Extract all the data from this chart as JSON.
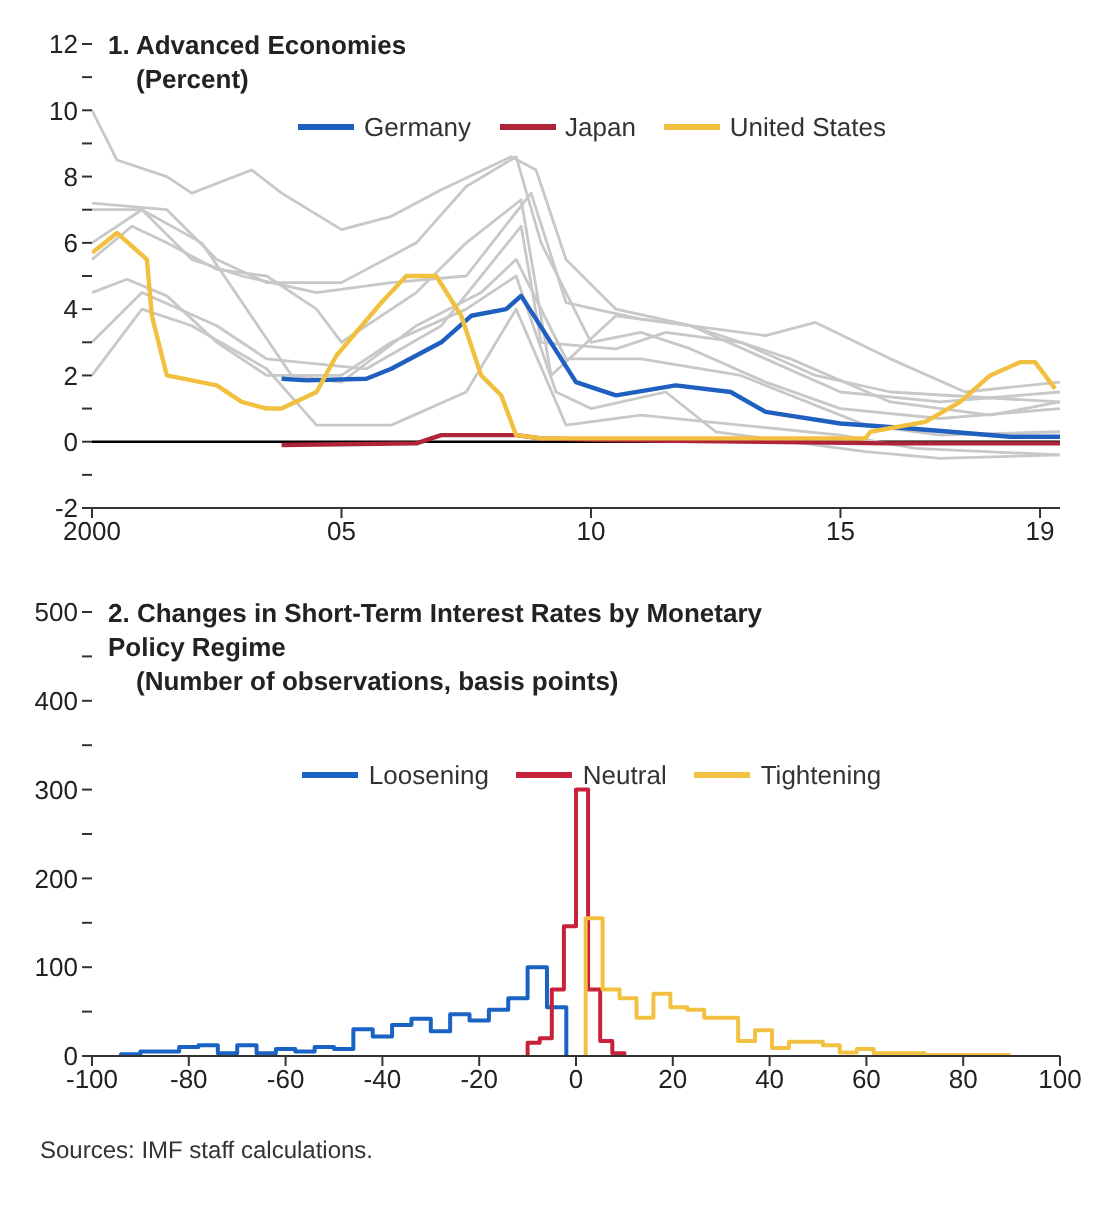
{
  "chart_data": [
    {
      "type": "line",
      "title": "1. Advanced Economies",
      "subtitle": "(Percent)",
      "legend": "top",
      "xlim": [
        2000,
        2019.4
      ],
      "xticks": [
        2000,
        {
          "value": 2005,
          "label": "05"
        },
        {
          "value": 2010,
          "label": "10"
        },
        {
          "value": 2015,
          "label": "15"
        },
        {
          "value": 2019,
          "label": "19"
        }
      ],
      "ylim": [
        -2,
        12
      ],
      "yticks": [
        -2,
        {
          "value": -1,
          "label": null
        },
        0,
        {
          "value": 1,
          "label": null
        },
        2,
        {
          "value": 3,
          "label": null
        },
        4,
        {
          "value": 5,
          "label": null
        },
        6,
        {
          "value": 7,
          "label": null
        },
        8,
        {
          "value": 9,
          "label": null
        },
        10,
        {
          "value": 11,
          "label": null
        },
        12
      ],
      "ref_lines": [
        {
          "axis": "y",
          "value": 0,
          "color": "#000000"
        }
      ],
      "series": [
        {
          "color": "#c8c8c8",
          "x": [
            2000,
            2000.5,
            2001.5,
            2002,
            2003.2,
            2003.8,
            2005,
            2006,
            2007,
            2008.4,
            2008.9,
            2009.5,
            2010.5,
            2012,
            2013.5,
            2015,
            2017,
            2019.4
          ],
          "values": [
            10,
            8.5,
            8,
            7.5,
            8.2,
            7.5,
            6.4,
            6.8,
            7.6,
            8.6,
            8.2,
            5.5,
            4,
            3.5,
            2.5,
            1.5,
            1.2,
            1.5
          ]
        },
        {
          "color": "#c8c8c8",
          "x": [
            2000,
            2001,
            2002.2,
            2004,
            2005,
            2006.5,
            2007.8,
            2008.5,
            2009.5,
            2011,
            2013,
            2015.5,
            2017,
            2019.4
          ],
          "values": [
            7,
            7,
            6,
            2,
            1.8,
            3.5,
            4.5,
            5.5,
            2.5,
            2.5,
            2,
            0.5,
            0.2,
            0.3
          ]
        },
        {
          "color": "#c8c8c8",
          "x": [
            2000,
            2000.7,
            2001.5,
            2002.5,
            2003.5,
            2005,
            2006,
            2007.5,
            2008.5,
            2009.3,
            2010,
            2011.5,
            2012.5,
            2014,
            2015.5,
            2017,
            2019.4
          ],
          "values": [
            4.5,
            4.9,
            4.4,
            3,
            2,
            2,
            3,
            4,
            5,
            1.5,
            1,
            1.5,
            0.3,
            0,
            -0.3,
            -0.5,
            -0.4
          ]
        },
        {
          "color": "#c8c8c8",
          "x": [
            2000,
            2001,
            2002.5,
            2003.5,
            2005.5,
            2007,
            2008.6,
            2009,
            2010.5,
            2011.5,
            2013,
            2014.5,
            2016,
            2019.4
          ],
          "values": [
            3,
            4.5,
            3.5,
            2.5,
            2.2,
            3.5,
            6.5,
            3,
            2.8,
            3.3,
            3,
            2,
            1.5,
            1.2
          ]
        },
        {
          "color": "#c8c8c8",
          "x": [
            2000,
            2001,
            2002,
            2003,
            2004.5,
            2006,
            2007.5,
            2008.8,
            2009.5,
            2011,
            2013.5,
            2014.5,
            2016,
            2017.5,
            2019.4
          ],
          "values": [
            6,
            7,
            5.5,
            5,
            4.5,
            4.8,
            5,
            7.5,
            4.2,
            3.7,
            3.2,
            3.6,
            2.5,
            1.5,
            1.8
          ]
        },
        {
          "color": "#c8c8c8",
          "x": [
            2000,
            2001,
            2002,
            2003.5,
            2004.5,
            2006,
            2007.5,
            2008.5,
            2009.5,
            2011,
            2013,
            2015,
            2016.5,
            2019.4
          ],
          "values": [
            2,
            4,
            3.5,
            2.2,
            0.5,
            0.5,
            1.5,
            4,
            0.5,
            0.8,
            0.5,
            0.2,
            -0.2,
            -0.4
          ]
        },
        {
          "color": "#c8c8c8",
          "x": [
            2000,
            2000.8,
            2001.5,
            2002.5,
            2003.5,
            2004.5,
            2005,
            2006.5,
            2007.5,
            2008.6,
            2009.2,
            2010.5,
            2012,
            2014,
            2016,
            2018,
            2019.4
          ],
          "values": [
            5.5,
            6.5,
            6,
            5.2,
            5,
            4,
            3,
            4.5,
            6,
            7.3,
            2,
            3.8,
            3.5,
            2.5,
            1.2,
            0.8,
            1.2
          ]
        },
        {
          "color": "#c8c8c8",
          "x": [
            2000,
            2001.5,
            2002.5,
            2003.5,
            2005,
            2006.5,
            2007.5,
            2008.5,
            2009,
            2010,
            2011,
            2012,
            2013.5,
            2015,
            2017,
            2019.4
          ],
          "values": [
            7.2,
            7,
            5.5,
            4.8,
            4.8,
            6,
            7.7,
            8.6,
            6,
            3,
            3.3,
            2.8,
            1.8,
            1,
            0.7,
            1
          ]
        },
        {
          "name": "Germany",
          "color": "#1f5fbf",
          "x": [
            2003.8,
            2004.3,
            2005.5,
            2006,
            2007,
            2007.6,
            2008.3,
            2008.6,
            2008.9,
            2009.7,
            2010.5,
            2011.7,
            2012.8,
            2013.5,
            2015,
            2016.4,
            2017.2,
            2018.4,
            2019.4
          ],
          "values": [
            1.9,
            1.85,
            1.9,
            2.2,
            3,
            3.8,
            4,
            4.4,
            3.7,
            1.8,
            1.4,
            1.7,
            1.5,
            0.9,
            0.55,
            0.4,
            0.3,
            0.15,
            0.15
          ]
        },
        {
          "name": "Japan",
          "color": "#b0243a",
          "x": [
            2003.8,
            2006.5,
            2007,
            2008.5,
            2009,
            2010.3,
            2016,
            2019.4
          ],
          "values": [
            -0.1,
            -0.05,
            0.2,
            0.2,
            0.1,
            0.05,
            -0.05,
            -0.05
          ]
        },
        {
          "name": "United States",
          "color": "#f2c03f",
          "x": [
            2000,
            2000.5,
            2001.1,
            2001.2,
            2001.5,
            2002.5,
            2003,
            2003.5,
            2003.8,
            2004.5,
            2004.9,
            2005.8,
            2006.3,
            2006.9,
            2007.4,
            2007.8,
            2008.2,
            2008.5,
            2009,
            2015.5,
            2015.6,
            2016.7,
            2017.4,
            2018,
            2018.6,
            2018.9,
            2019.3
          ],
          "values": [
            5.7,
            6.3,
            5.5,
            3.8,
            2,
            1.7,
            1.2,
            1,
            1,
            1.5,
            2.6,
            4.2,
            5,
            5,
            3.8,
            2,
            1.4,
            0.2,
            0.1,
            0.1,
            0.3,
            0.6,
            1.2,
            2,
            2.4,
            2.4,
            1.6
          ]
        }
      ]
    },
    {
      "type": "step",
      "title": "2. Changes in Short-Term Interest Rates by Monetary Policy Regime",
      "subtitle": "(Number of observations, basis points)",
      "legend": "top",
      "xlim": [
        -100,
        100
      ],
      "xticks": [
        -100,
        -80,
        -60,
        -40,
        -20,
        0,
        20,
        40,
        60,
        80,
        100
      ],
      "ylim": [
        0,
        500
      ],
      "yticks": [
        0,
        {
          "value": 50,
          "label": null
        },
        100,
        {
          "value": 150,
          "label": null
        },
        200,
        {
          "value": 250,
          "label": null
        },
        300,
        {
          "value": 350,
          "label": null
        },
        400,
        {
          "value": 450,
          "label": null
        },
        500
      ],
      "annotations": [
        "Sources: IMF staff calculations."
      ],
      "series": [
        {
          "name": "Loosening",
          "color": "#1a63c5",
          "x": [
            -94,
            -94,
            -90,
            -86,
            -82,
            -78,
            -74,
            -70,
            -66,
            -62,
            -58,
            -54,
            -50,
            -46,
            -42,
            -38,
            -34,
            -30,
            -26,
            -22,
            -18,
            -14,
            -10,
            -6,
            -2
          ],
          "values": [
            0,
            2,
            5,
            5,
            10,
            12,
            3,
            12,
            3,
            8,
            5,
            10,
            8,
            30,
            22,
            35,
            42,
            28,
            47,
            40,
            52,
            65,
            100,
            55,
            0
          ]
        },
        {
          "name": "Neutral",
          "color": "#c8213a",
          "x": [
            -10,
            -10,
            -7.5,
            -5,
            -2.5,
            0,
            2.5,
            5,
            7.5,
            10
          ],
          "values": [
            0,
            15,
            20,
            75,
            146,
            300,
            75,
            17,
            3,
            0
          ]
        },
        {
          "name": "Tightening",
          "color": "#f3c141",
          "x": [
            2,
            2,
            5.5,
            9,
            12.5,
            16,
            19.5,
            23,
            26.5,
            30,
            33.5,
            37,
            40.5,
            44,
            47.5,
            51,
            54.5,
            58,
            61.5,
            65,
            68.5,
            72,
            75.5,
            79,
            82.5,
            86,
            89.5
          ],
          "values": [
            0,
            155,
            75,
            65,
            43,
            70,
            55,
            52,
            43,
            43,
            17,
            29,
            9,
            16,
            16,
            12,
            4,
            8,
            3,
            3,
            3,
            1,
            1,
            1,
            1,
            1,
            0
          ]
        }
      ]
    }
  ]
}
